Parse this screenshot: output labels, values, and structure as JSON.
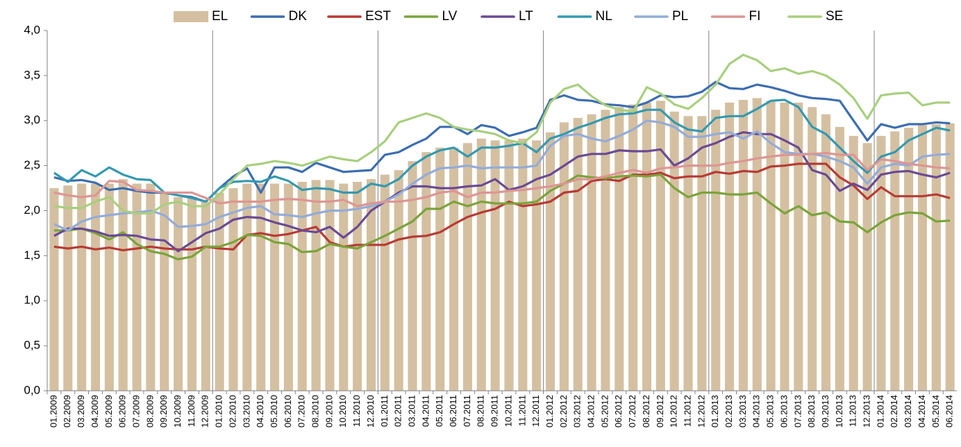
{
  "chart_data": {
    "type": "combo",
    "categories": [
      "01.2009",
      "02.2009",
      "03.2009",
      "04.2009",
      "05.2009",
      "06.2009",
      "07.2009",
      "08.2009",
      "09.2009",
      "10.2009",
      "11.2009",
      "12.2009",
      "01.2010",
      "02.2010",
      "03.2010",
      "04.2010",
      "05.2010",
      "06.2010",
      "07.2010",
      "08.2010",
      "09.2010",
      "10.2010",
      "11.2010",
      "12.2010",
      "01.2011",
      "02.2011",
      "03.2011",
      "04.2011",
      "05.2011",
      "06.2011",
      "07.2011",
      "08.2011",
      "09.2011",
      "10.2011",
      "11.2011",
      "12.2011",
      "01.2012",
      "02.2012",
      "03.2012",
      "04.2012",
      "05.2012",
      "06.2012",
      "07.2012",
      "08.2012",
      "09.2012",
      "10.2012",
      "11.2012",
      "12.2012",
      "01.2013",
      "02.2013",
      "03.2013",
      "04.2013",
      "05.2013",
      "06.2013",
      "07.2013",
      "08.2013",
      "09.2013",
      "10.2013",
      "11.2013",
      "12.2013",
      "01.2014",
      "02.2014",
      "03.2014",
      "04.2014",
      "05.2014",
      "06.2014"
    ],
    "series": [
      {
        "name": "EL",
        "type": "bar",
        "color": "#d4c0a1",
        "values": [
          2.25,
          2.28,
          2.3,
          2.3,
          2.3,
          2.35,
          2.3,
          2.3,
          2.2,
          2.15,
          2.15,
          2.1,
          2.2,
          2.25,
          2.3,
          2.3,
          2.3,
          2.3,
          2.32,
          2.34,
          2.34,
          2.3,
          2.32,
          2.35,
          2.4,
          2.45,
          2.55,
          2.65,
          2.7,
          2.7,
          2.75,
          2.8,
          2.78,
          2.78,
          2.8,
          2.78,
          2.87,
          2.98,
          3.03,
          3.07,
          3.12,
          3.15,
          3.18,
          3.2,
          3.22,
          3.1,
          3.05,
          3.05,
          3.12,
          3.2,
          3.23,
          3.25,
          3.22,
          3.2,
          3.2,
          3.15,
          3.07,
          2.93,
          2.83,
          2.75,
          2.83,
          2.88,
          2.92,
          2.95,
          2.96,
          2.97
        ]
      },
      {
        "name": "DK",
        "type": "line",
        "color": "#3c6db0",
        "values": [
          2.37,
          2.33,
          2.34,
          2.31,
          2.23,
          2.25,
          2.22,
          2.2,
          2.2,
          2.17,
          2.15,
          2.1,
          2.25,
          2.38,
          2.47,
          2.2,
          2.48,
          2.48,
          2.43,
          2.53,
          2.48,
          2.43,
          2.44,
          2.45,
          2.62,
          2.65,
          2.73,
          2.8,
          2.93,
          2.93,
          2.85,
          2.95,
          2.92,
          2.83,
          2.87,
          2.92,
          3.23,
          3.28,
          3.23,
          3.22,
          3.18,
          3.17,
          3.15,
          3.2,
          3.28,
          3.26,
          3.27,
          3.32,
          3.43,
          3.36,
          3.35,
          3.4,
          3.37,
          3.33,
          3.28,
          3.25,
          3.24,
          3.22,
          3.0,
          2.78,
          2.96,
          2.92,
          2.96,
          2.96,
          2.98,
          2.97
        ]
      },
      {
        "name": "EST",
        "type": "line",
        "color": "#b83a34",
        "values": [
          1.6,
          1.58,
          1.6,
          1.57,
          1.59,
          1.56,
          1.58,
          1.6,
          1.58,
          1.57,
          1.57,
          1.6,
          1.58,
          1.57,
          1.73,
          1.75,
          1.72,
          1.74,
          1.78,
          1.82,
          1.65,
          1.6,
          1.62,
          1.62,
          1.62,
          1.68,
          1.71,
          1.72,
          1.76,
          1.85,
          1.93,
          1.98,
          2.02,
          2.1,
          2.05,
          2.07,
          2.1,
          2.2,
          2.22,
          2.33,
          2.35,
          2.33,
          2.4,
          2.4,
          2.42,
          2.36,
          2.38,
          2.38,
          2.43,
          2.41,
          2.44,
          2.43,
          2.49,
          2.5,
          2.52,
          2.52,
          2.52,
          2.37,
          2.28,
          2.13,
          2.26,
          2.16,
          2.16,
          2.16,
          2.18,
          2.14
        ]
      },
      {
        "name": "LV",
        "type": "line",
        "color": "#7aa33a",
        "values": [
          1.78,
          1.78,
          1.8,
          1.75,
          1.68,
          1.76,
          1.63,
          1.55,
          1.52,
          1.46,
          1.49,
          1.6,
          1.6,
          1.65,
          1.73,
          1.72,
          1.65,
          1.63,
          1.54,
          1.55,
          1.63,
          1.6,
          1.58,
          1.65,
          1.72,
          1.8,
          1.88,
          2.02,
          2.02,
          2.1,
          2.05,
          2.1,
          2.08,
          2.08,
          2.08,
          2.1,
          2.22,
          2.3,
          2.39,
          2.37,
          2.36,
          2.38,
          2.39,
          2.38,
          2.4,
          2.25,
          2.15,
          2.2,
          2.2,
          2.18,
          2.18,
          2.2,
          2.08,
          1.97,
          2.05,
          1.95,
          1.98,
          1.88,
          1.87,
          1.76,
          1.87,
          1.95,
          1.98,
          1.97,
          1.88,
          1.89
        ]
      },
      {
        "name": "LT",
        "type": "line",
        "color": "#6a4a93",
        "values": [
          1.72,
          1.8,
          1.8,
          1.77,
          1.72,
          1.73,
          1.72,
          1.68,
          1.67,
          1.55,
          1.65,
          1.75,
          1.8,
          1.9,
          1.93,
          1.92,
          1.87,
          1.83,
          1.78,
          1.76,
          1.82,
          1.7,
          1.82,
          2.0,
          2.1,
          2.2,
          2.27,
          2.27,
          2.25,
          2.25,
          2.27,
          2.28,
          2.35,
          2.23,
          2.27,
          2.35,
          2.4,
          2.5,
          2.6,
          2.63,
          2.63,
          2.67,
          2.66,
          2.66,
          2.68,
          2.5,
          2.58,
          2.7,
          2.75,
          2.82,
          2.87,
          2.85,
          2.85,
          2.78,
          2.7,
          2.45,
          2.4,
          2.22,
          2.3,
          2.23,
          2.4,
          2.43,
          2.44,
          2.4,
          2.37,
          2.42
        ]
      },
      {
        "name": "NL",
        "type": "line",
        "color": "#3499b0",
        "values": [
          2.42,
          2.32,
          2.45,
          2.38,
          2.48,
          2.4,
          2.35,
          2.34,
          2.2,
          2.17,
          2.14,
          2.1,
          2.25,
          2.32,
          2.33,
          2.32,
          2.38,
          2.33,
          2.23,
          2.25,
          2.24,
          2.2,
          2.2,
          2.3,
          2.27,
          2.35,
          2.5,
          2.6,
          2.67,
          2.7,
          2.6,
          2.7,
          2.7,
          2.72,
          2.75,
          2.65,
          2.8,
          2.85,
          2.92,
          2.97,
          3.03,
          3.07,
          3.08,
          3.12,
          3.12,
          2.98,
          2.9,
          2.88,
          3.03,
          3.05,
          3.05,
          3.13,
          3.22,
          3.23,
          3.15,
          2.93,
          2.85,
          2.7,
          2.55,
          2.42,
          2.6,
          2.65,
          2.78,
          2.85,
          2.92,
          2.89
        ]
      },
      {
        "name": "PL",
        "type": "line",
        "color": "#93acd8",
        "values": [
          1.85,
          1.78,
          1.88,
          1.93,
          1.95,
          1.97,
          1.98,
          2.0,
          1.95,
          1.82,
          1.83,
          1.85,
          1.93,
          1.98,
          2.03,
          2.05,
          1.96,
          1.95,
          1.93,
          1.97,
          2.0,
          2.0,
          2.02,
          2.05,
          2.1,
          2.18,
          2.3,
          2.4,
          2.47,
          2.48,
          2.5,
          2.47,
          2.48,
          2.48,
          2.48,
          2.5,
          2.72,
          2.83,
          2.85,
          2.8,
          2.77,
          2.83,
          2.9,
          3.0,
          2.98,
          2.93,
          2.82,
          2.82,
          2.85,
          2.87,
          2.8,
          2.88,
          2.75,
          2.65,
          2.63,
          2.63,
          2.6,
          2.55,
          2.48,
          2.3,
          2.48,
          2.52,
          2.5,
          2.6,
          2.62,
          2.63
        ]
      },
      {
        "name": "FI",
        "type": "line",
        "color": "#de9593",
        "values": [
          2.2,
          2.17,
          2.15,
          2.17,
          2.33,
          2.32,
          2.23,
          2.22,
          2.2,
          2.2,
          2.2,
          2.14,
          2.08,
          2.1,
          2.1,
          2.1,
          2.12,
          2.13,
          2.12,
          2.1,
          2.1,
          2.12,
          2.05,
          2.08,
          2.1,
          2.1,
          2.12,
          2.15,
          2.2,
          2.22,
          2.15,
          2.2,
          2.2,
          2.22,
          2.23,
          2.25,
          2.27,
          2.3,
          2.35,
          2.35,
          2.38,
          2.42,
          2.45,
          2.42,
          2.47,
          2.48,
          2.5,
          2.5,
          2.5,
          2.53,
          2.55,
          2.58,
          2.6,
          2.62,
          2.62,
          2.63,
          2.64,
          2.62,
          2.62,
          2.45,
          2.57,
          2.55,
          2.52,
          2.5,
          2.48,
          2.47
        ]
      },
      {
        "name": "SE",
        "type": "line",
        "color": "#a8cf7e",
        "values": [
          2.05,
          2.03,
          2.03,
          2.1,
          2.15,
          2.0,
          1.97,
          1.97,
          2.07,
          2.1,
          2.05,
          2.05,
          2.18,
          2.35,
          2.5,
          2.52,
          2.55,
          2.53,
          2.5,
          2.55,
          2.6,
          2.57,
          2.55,
          2.65,
          2.77,
          2.98,
          3.03,
          3.08,
          3.03,
          2.93,
          2.9,
          2.88,
          2.85,
          2.78,
          2.75,
          2.87,
          3.2,
          3.35,
          3.4,
          3.27,
          3.17,
          3.12,
          3.1,
          3.37,
          3.3,
          3.18,
          3.13,
          3.25,
          3.4,
          3.63,
          3.73,
          3.67,
          3.55,
          3.58,
          3.52,
          3.55,
          3.5,
          3.4,
          3.25,
          3.02,
          3.28,
          3.3,
          3.31,
          3.17,
          3.2,
          3.2
        ]
      }
    ],
    "ylim": [
      0,
      4
    ],
    "yticks": [
      {
        "value": 0,
        "label": "0,0"
      },
      {
        "value": 0.5,
        "label": "0,5"
      },
      {
        "value": 1,
        "label": "1,0"
      },
      {
        "value": 1.5,
        "label": "1,5"
      },
      {
        "value": 2,
        "label": "2,0"
      },
      {
        "value": 2.5,
        "label": "2,5"
      },
      {
        "value": 3,
        "label": "3,0"
      },
      {
        "value": 3.5,
        "label": "3,5"
      },
      {
        "value": 4,
        "label": "4,0"
      }
    ],
    "legend": "top"
  }
}
